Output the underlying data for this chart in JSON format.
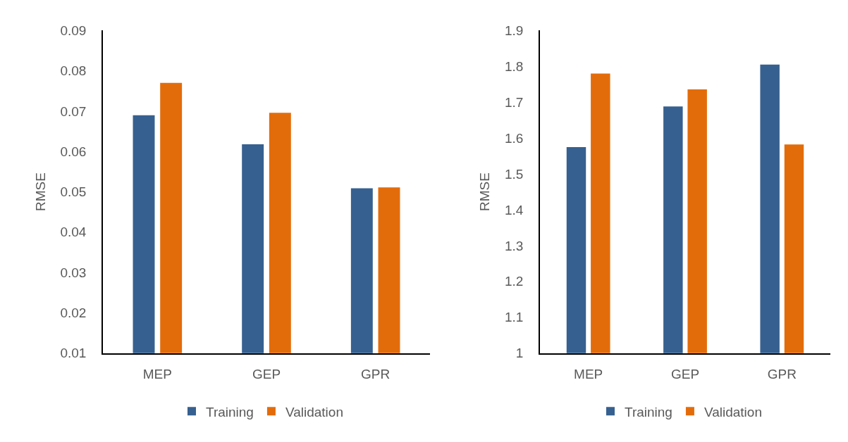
{
  "chart_data": [
    {
      "type": "bar",
      "categories": [
        "MEP",
        "GEP",
        "GPR"
      ],
      "ylabel": "RMSE",
      "ylim": [
        0.01,
        0.09
      ],
      "yticks": [
        0.01,
        0.02,
        0.03,
        0.04,
        0.05,
        0.06,
        0.07,
        0.08,
        0.09
      ],
      "legend": "bottom",
      "series": [
        {
          "name": "Training",
          "color": "#36608f",
          "values": [
            0.069,
            0.0618,
            0.0509
          ]
        },
        {
          "name": "Validation",
          "color": "#e36c0a",
          "values": [
            0.077,
            0.0696,
            0.0511
          ]
        }
      ]
    },
    {
      "type": "bar",
      "categories": [
        "MEP",
        "GEP",
        "GPR"
      ],
      "ylabel": "RMSE",
      "ylim": [
        1,
        1.9
      ],
      "yticks": [
        1,
        1.1,
        1.2,
        1.3,
        1.4,
        1.5,
        1.6,
        1.7,
        1.8,
        1.9
      ],
      "legend": "bottom",
      "series": [
        {
          "name": "Training",
          "color": "#36608f",
          "values": [
            1.575,
            1.688,
            1.805
          ]
        },
        {
          "name": "Validation",
          "color": "#e36c0a",
          "values": [
            1.78,
            1.736,
            1.582
          ]
        }
      ]
    }
  ]
}
